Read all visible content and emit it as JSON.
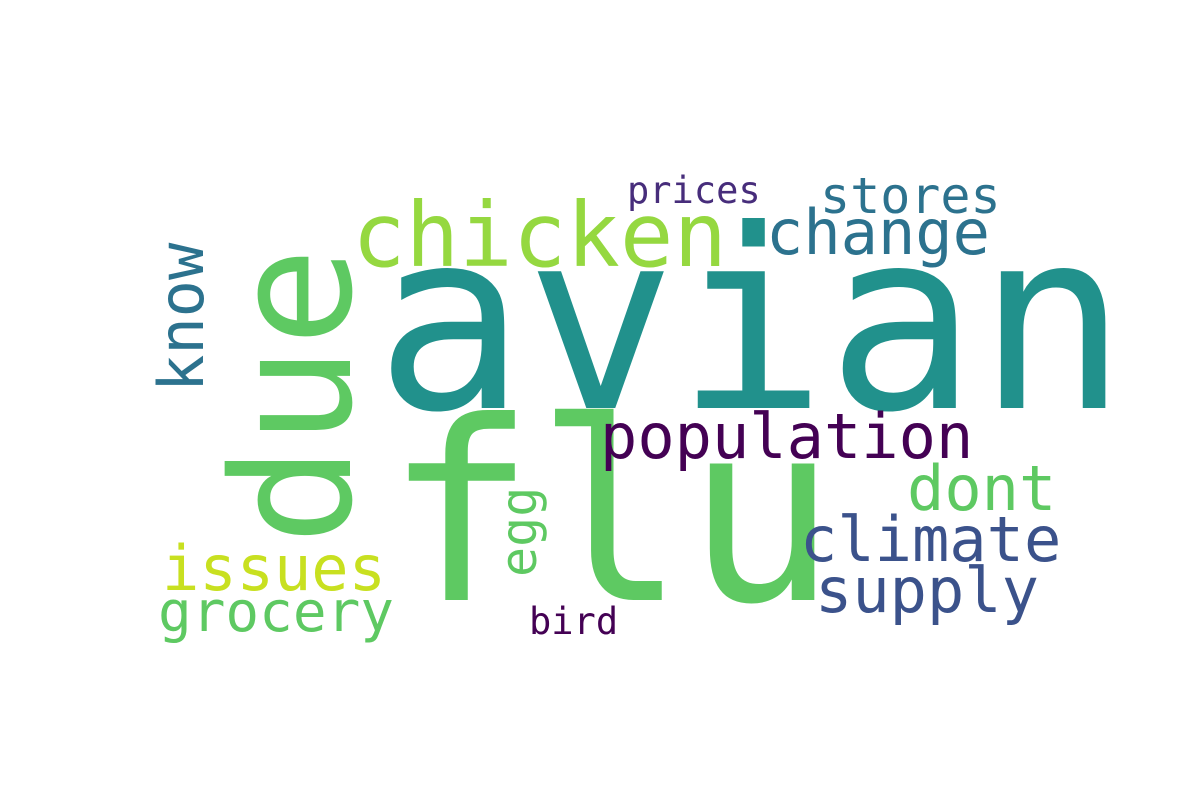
{
  "word_cloud": {
    "words": [
      {
        "id": "avian",
        "text": "avian",
        "color": "#21918c"
      },
      {
        "id": "flu",
        "text": "flu",
        "color": "#5ec962"
      },
      {
        "id": "due",
        "text": "due",
        "color": "#5ec962"
      },
      {
        "id": "chicken",
        "text": "chicken",
        "color": "#95d840"
      },
      {
        "id": "change",
        "text": "change",
        "color": "#2c728e"
      },
      {
        "id": "stores",
        "text": "stores",
        "color": "#2c728e"
      },
      {
        "id": "prices",
        "text": "prices",
        "color": "#472d7b"
      },
      {
        "id": "know",
        "text": "know",
        "color": "#2c728e"
      },
      {
        "id": "population",
        "text": "population",
        "color": "#440154"
      },
      {
        "id": "dont",
        "text": "dont",
        "color": "#5ec962"
      },
      {
        "id": "climate",
        "text": "climate",
        "color": "#3b528b"
      },
      {
        "id": "supply",
        "text": "supply",
        "color": "#3b528b"
      },
      {
        "id": "issues",
        "text": "issues",
        "color": "#c8e020"
      },
      {
        "id": "grocery",
        "text": "grocery",
        "color": "#5ec962"
      },
      {
        "id": "egg",
        "text": "egg",
        "color": "#5ec962"
      },
      {
        "id": "bird",
        "text": "bird",
        "color": "#440154"
      }
    ]
  }
}
